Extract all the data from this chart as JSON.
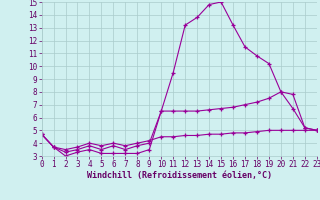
{
  "x": [
    0,
    1,
    2,
    3,
    4,
    5,
    6,
    7,
    8,
    9,
    10,
    11,
    12,
    13,
    14,
    15,
    16,
    17,
    18,
    19,
    20,
    21,
    22,
    23
  ],
  "line1": [
    4.7,
    3.7,
    3.0,
    3.3,
    3.5,
    3.2,
    3.2,
    3.2,
    3.2,
    3.5,
    6.5,
    9.5,
    13.2,
    13.8,
    14.8,
    15.0,
    13.2,
    11.5,
    10.8,
    10.2,
    8.0,
    6.7,
    5.2,
    5.0
  ],
  "line2": [
    4.7,
    3.7,
    3.3,
    3.5,
    3.8,
    3.5,
    3.8,
    3.5,
    3.8,
    4.0,
    6.5,
    6.5,
    6.5,
    6.5,
    6.6,
    6.7,
    6.8,
    7.0,
    7.2,
    7.5,
    8.0,
    7.8,
    5.2,
    5.0
  ],
  "line3": [
    4.7,
    3.7,
    3.5,
    3.7,
    4.0,
    3.8,
    4.0,
    3.8,
    4.0,
    4.2,
    4.5,
    4.5,
    4.6,
    4.6,
    4.7,
    4.7,
    4.8,
    4.8,
    4.9,
    5.0,
    5.0,
    5.0,
    5.0,
    5.0
  ],
  "bg_color": "#d0f0f0",
  "grid_color": "#aacccc",
  "line_color": "#990099",
  "xlabel": "Windchill (Refroidissement éolien,°C)",
  "ylim": [
    3,
    15
  ],
  "xlim": [
    0,
    23
  ],
  "yticks": [
    3,
    4,
    5,
    6,
    7,
    8,
    9,
    10,
    11,
    12,
    13,
    14,
    15
  ],
  "xtick_labels": [
    "0",
    "1",
    "2",
    "3",
    "4",
    "5",
    "6",
    "7",
    "8",
    "9",
    "10",
    "11",
    "12",
    "13",
    "14",
    "15",
    "16",
    "17",
    "18",
    "19",
    "20",
    "21",
    "22",
    "23"
  ],
  "tick_color": "#660066",
  "xlabel_fontsize": 6.0,
  "tick_fontsize": 5.5
}
